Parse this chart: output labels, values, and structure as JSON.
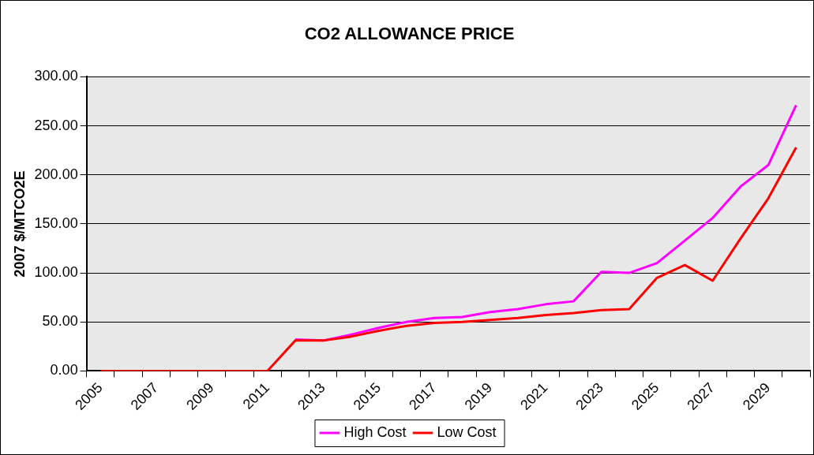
{
  "chart_data": {
    "type": "line",
    "title": "CO2 ALLOWANCE PRICE",
    "ylabel": "2007 $/MTCO2E",
    "categories": [
      "2005",
      null,
      "2007",
      null,
      "2009",
      null,
      "2011",
      null,
      "2013",
      null,
      "2015",
      null,
      "2017",
      null,
      "2019",
      null,
      "2021",
      null,
      "2023",
      null,
      "2025",
      null,
      "2027",
      null,
      "2029",
      null
    ],
    "series": [
      {
        "name": "High Cost",
        "color": "#ff00ff",
        "values": [
          null,
          null,
          null,
          null,
          null,
          null,
          null,
          32,
          31,
          37,
          44,
          50,
          54,
          55,
          60,
          63,
          68,
          71,
          101,
          100,
          110,
          133,
          156,
          188,
          210,
          271
        ]
      },
      {
        "name": "Low Cost",
        "color": "#ff0000",
        "values": [
          0,
          0,
          0,
          0,
          0,
          0,
          0,
          31,
          31,
          35,
          41,
          46,
          49,
          50,
          52,
          54,
          57,
          59,
          62,
          63,
          95,
          108,
          92,
          135,
          176,
          228
        ]
      }
    ],
    "ylim": [
      0,
      300
    ],
    "yticks": [
      {
        "value": 0,
        "label": "0.00"
      },
      {
        "value": 50,
        "label": "50.00"
      },
      {
        "value": 100,
        "label": "100.00"
      },
      {
        "value": 150,
        "label": "150.00"
      },
      {
        "value": 200,
        "label": "200.00"
      },
      {
        "value": 250,
        "label": "250.00"
      },
      {
        "value": 300,
        "label": "300.00"
      }
    ],
    "grid": "y",
    "legend": "bottom",
    "marker": "none",
    "line_style": "solid"
  }
}
